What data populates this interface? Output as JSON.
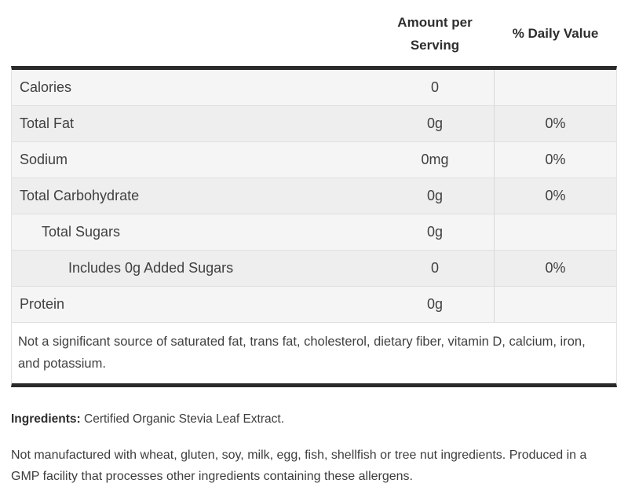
{
  "table": {
    "header": {
      "amount_label": "Amount per Serving",
      "daily_value_label": "% Daily Value"
    },
    "rows": [
      {
        "label": "Calories",
        "amount": "0",
        "daily_value": "",
        "indent": 0
      },
      {
        "label": "Total Fat",
        "amount": "0g",
        "daily_value": "0%",
        "indent": 0
      },
      {
        "label": "Sodium",
        "amount": "0mg",
        "daily_value": "0%",
        "indent": 0
      },
      {
        "label": "Total Carbohydrate",
        "amount": "0g",
        "daily_value": "0%",
        "indent": 0
      },
      {
        "label": "Total Sugars",
        "amount": "0g",
        "daily_value": "",
        "indent": 1
      },
      {
        "label": "Includes 0g Added Sugars",
        "amount": "0",
        "daily_value": "0%",
        "indent": 2
      },
      {
        "label": "Protein",
        "amount": "0g",
        "daily_value": "",
        "indent": 0
      }
    ],
    "footnote": "Not a significant source of saturated fat, trans fat, cholesterol, dietary fiber, vitamin D, calcium, iron, and potassium."
  },
  "ingredients": {
    "label": "Ingredients:",
    "text": " Certified Organic Stevia Leaf Extract."
  },
  "allergen_statement": "Not manufactured with wheat, gluten, soy, milk, egg, fish, shellfish or tree nut ingredients. Produced in a GMP facility that processes other ingredients containing these allergens.",
  "colors": {
    "rule_dark": "#2a2a2a",
    "row_light": "#f5f5f5",
    "row_dark": "#eeeeee",
    "row_border": "#e0e0e0",
    "column_divider": "#d8d8d8",
    "text": "#404040"
  }
}
